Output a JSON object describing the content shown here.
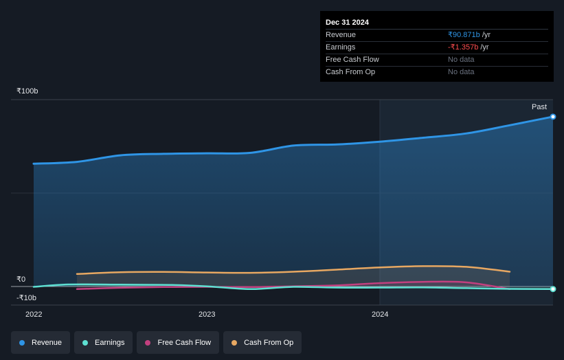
{
  "tooltip": {
    "date": "Dec 31 2024",
    "rows": [
      {
        "label": "Revenue",
        "value": "₹90.871b",
        "unit": " /yr"
      },
      {
        "label": "Earnings",
        "value": "-₹1.357b",
        "unit": " /yr"
      },
      {
        "label": "Free Cash Flow",
        "value": "No data"
      },
      {
        "label": "Cash From Op",
        "value": "No data"
      }
    ]
  },
  "past_label": "Past",
  "colors": {
    "revenue": "#2f95e6",
    "earnings": "#5ee0d2",
    "free_cash_flow": "#c2407f",
    "cash_from_op": "#e8a862",
    "background": "#151b24"
  },
  "chart_data": {
    "type": "line",
    "ylim": [
      -10,
      100
    ],
    "y_ticks": [
      {
        "value": 100,
        "label": "₹100b"
      },
      {
        "value": 0,
        "label": "₹0"
      },
      {
        "value": -10,
        "label": "-₹10b"
      }
    ],
    "x_ticks": [
      {
        "value": 2022.0,
        "label": "2022"
      },
      {
        "value": 2023.0,
        "label": "2023"
      },
      {
        "value": 2024.0,
        "label": "2024"
      }
    ],
    "xlim": [
      2021.87,
      2025.0
    ],
    "past_region_start": 2024.0,
    "legend_position": "bottom-left",
    "series": [
      {
        "name": "Revenue",
        "color_key": "revenue",
        "area": true,
        "points": [
          [
            2022.0,
            65.7
          ],
          [
            2022.25,
            66.7
          ],
          [
            2022.5,
            70.2
          ],
          [
            2022.75,
            71.0
          ],
          [
            2023.0,
            71.3
          ],
          [
            2023.25,
            71.5
          ],
          [
            2023.5,
            75.4
          ],
          [
            2023.75,
            76.0
          ],
          [
            2024.0,
            77.5
          ],
          [
            2024.25,
            79.6
          ],
          [
            2024.5,
            81.9
          ],
          [
            2024.75,
            86.3
          ],
          [
            2025.0,
            90.871
          ]
        ]
      },
      {
        "name": "Earnings",
        "color_key": "earnings",
        "area": false,
        "points": [
          [
            2022.0,
            -0.2
          ],
          [
            2022.2,
            1.1
          ],
          [
            2022.5,
            1.0
          ],
          [
            2022.8,
            0.8
          ],
          [
            2023.0,
            0.1
          ],
          [
            2023.25,
            -1.4
          ],
          [
            2023.5,
            -0.2
          ],
          [
            2023.75,
            -0.6
          ],
          [
            2024.0,
            -0.6
          ],
          [
            2024.25,
            -0.5
          ],
          [
            2024.5,
            -0.9
          ],
          [
            2024.75,
            -1.3
          ],
          [
            2025.0,
            -1.357
          ]
        ]
      },
      {
        "name": "Free Cash Flow",
        "color_key": "free_cash_flow",
        "area": false,
        "points": [
          [
            2022.25,
            -1.4
          ],
          [
            2022.5,
            -0.7
          ],
          [
            2022.75,
            -0.3
          ],
          [
            2023.0,
            -0.2
          ],
          [
            2023.25,
            -0.3
          ],
          [
            2023.5,
            0.1
          ],
          [
            2023.75,
            0.6
          ],
          [
            2024.0,
            1.8
          ],
          [
            2024.25,
            2.5
          ],
          [
            2024.5,
            2.2
          ],
          [
            2024.75,
            -1.4
          ]
        ]
      },
      {
        "name": "Cash From Op",
        "color_key": "cash_from_op",
        "area": false,
        "points": [
          [
            2022.25,
            6.7
          ],
          [
            2022.5,
            7.6
          ],
          [
            2022.75,
            7.8
          ],
          [
            2023.0,
            7.5
          ],
          [
            2023.25,
            7.3
          ],
          [
            2023.5,
            7.9
          ],
          [
            2023.75,
            9.0
          ],
          [
            2024.0,
            10.2
          ],
          [
            2024.25,
            10.9
          ],
          [
            2024.5,
            10.5
          ],
          [
            2024.75,
            7.9
          ]
        ]
      }
    ]
  },
  "legend": [
    {
      "label": "Revenue",
      "color": "#2f95e6"
    },
    {
      "label": "Earnings",
      "color": "#5ee0d2"
    },
    {
      "label": "Free Cash Flow",
      "color": "#c2407f"
    },
    {
      "label": "Cash From Op",
      "color": "#e8a862"
    }
  ]
}
